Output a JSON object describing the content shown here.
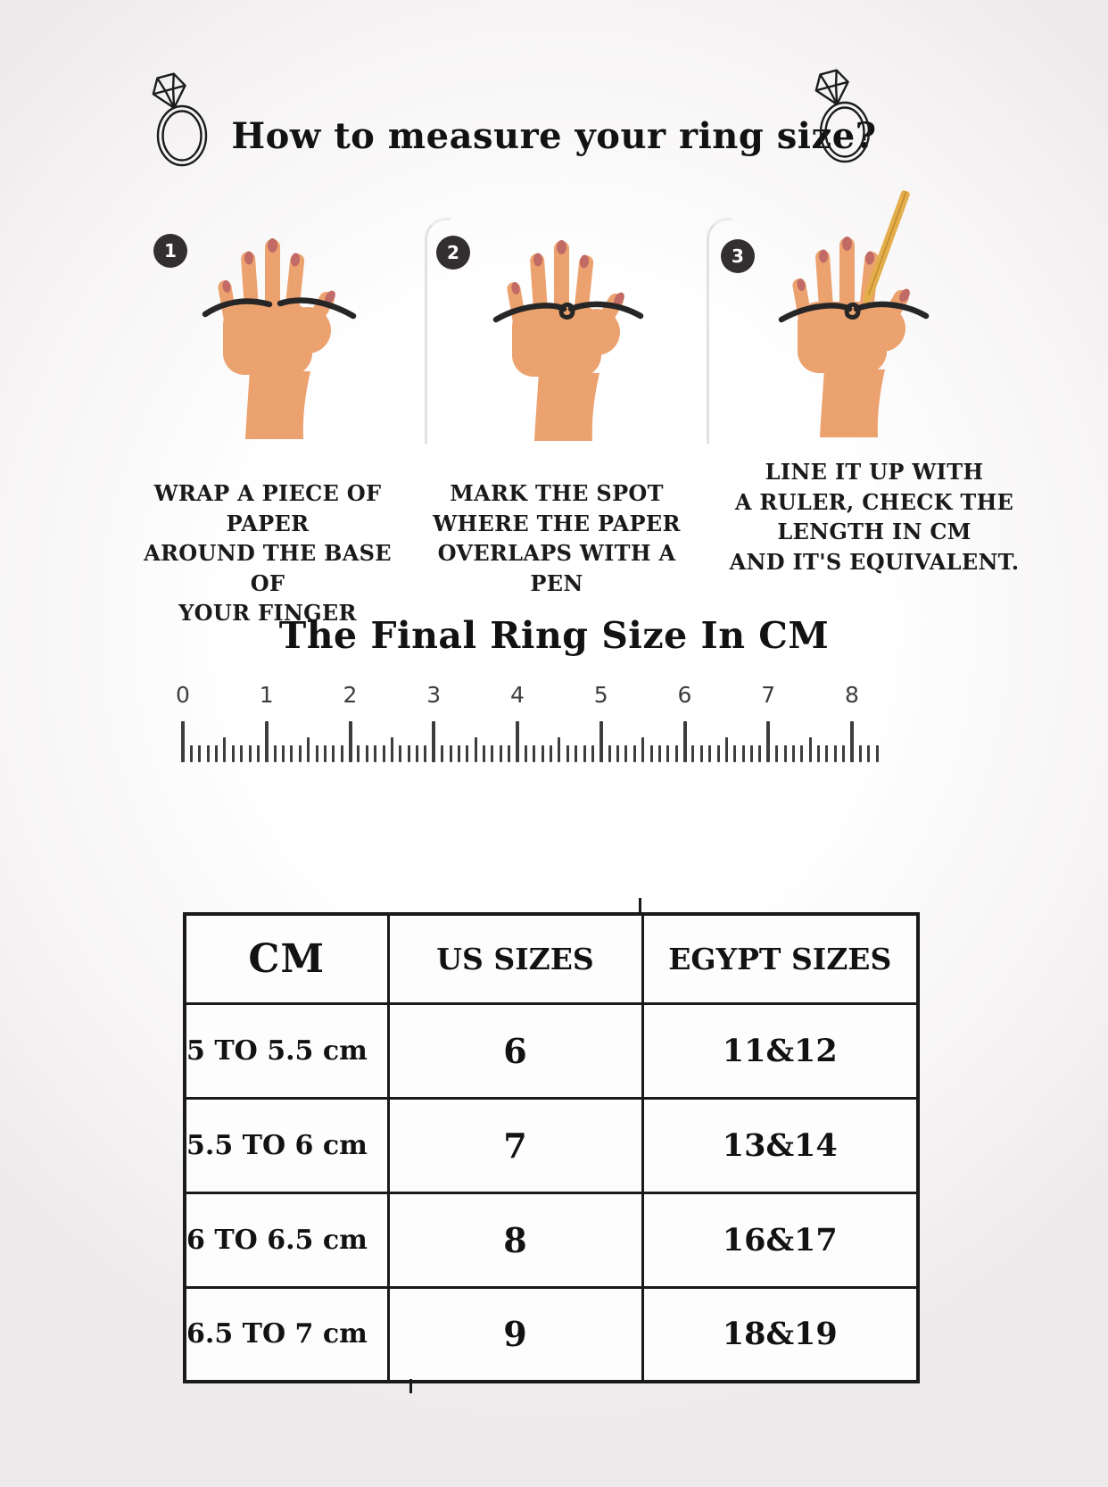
{
  "header": {
    "title": "How to measure your ring size?",
    "left_icon": "diamond-ring",
    "right_icon": "diamond-ring"
  },
  "steps": [
    {
      "number": "1",
      "caption": "WRAP A PIECE OF PAPER\nAROUND THE BASE OF\nYOUR FINGER",
      "illustration": "hand-with-paper-strip"
    },
    {
      "number": "2",
      "caption": "MARK THE SPOT\nWHERE THE PAPER\nOVERLAPS WITH A PEN",
      "illustration": "hand-with-marked-strip"
    },
    {
      "number": "3",
      "caption": "LINE IT UP WITH\nA RULER, CHECK THE\nLENGTH IN CM\nAND IT'S EQUIVALENT.",
      "illustration": "hand-with-strip-and-pen"
    }
  ],
  "result_section": {
    "title": "The Final Ring Size In CM"
  },
  "ruler": {
    "unit_labels": [
      "0",
      "1",
      "2",
      "3",
      "4",
      "5",
      "6",
      "7",
      "8"
    ],
    "minor_ticks_per_unit": 10,
    "extra_end_ticks": 3
  },
  "size_table": {
    "columns": [
      "CM",
      "US SIZES",
      "EGYPT SIZES"
    ],
    "rows": [
      [
        "5 TO 5.5 cm",
        "6",
        "11&12"
      ],
      [
        "5.5 TO 6 cm",
        "7",
        "13&14"
      ],
      [
        "6 TO 6.5 cm",
        "8",
        "16&17"
      ],
      [
        "6.5 TO 7 cm",
        "9",
        "18&19"
      ]
    ]
  },
  "colors": {
    "skin": "#eca26f",
    "nail": "#c16a66",
    "paper_strip": "#262626",
    "pen_gold": "#e3ae4b",
    "badge": "#332f30",
    "ink": "#141414",
    "ruler_ink": "#3d3d3d"
  }
}
